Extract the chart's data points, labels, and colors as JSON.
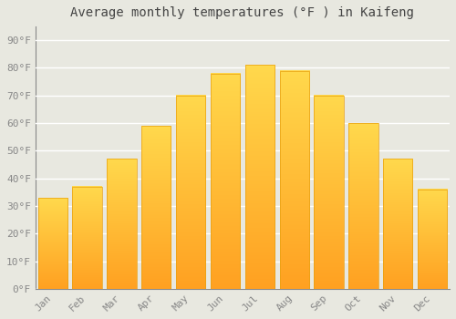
{
  "title": "Average monthly temperatures (°F ) in Kaifeng",
  "months": [
    "Jan",
    "Feb",
    "Mar",
    "Apr",
    "May",
    "Jun",
    "Jul",
    "Aug",
    "Sep",
    "Oct",
    "Nov",
    "Dec"
  ],
  "values": [
    33,
    37,
    47,
    59,
    70,
    78,
    81,
    79,
    70,
    60,
    47,
    36
  ],
  "bar_color_top": "#FFCC33",
  "bar_color_bottom": "#FFA020",
  "background_color": "#E8E8E0",
  "grid_color": "#FFFFFF",
  "ylabel_ticks": [
    "0°F",
    "10°F",
    "20°F",
    "30°F",
    "40°F",
    "50°F",
    "60°F",
    "70°F",
    "80°F",
    "90°F"
  ],
  "ytick_values": [
    0,
    10,
    20,
    30,
    40,
    50,
    60,
    70,
    80,
    90
  ],
  "ylim": [
    0,
    95
  ],
  "title_fontsize": 10,
  "tick_fontsize": 8,
  "tick_color": "#888888",
  "bar_width": 0.85
}
